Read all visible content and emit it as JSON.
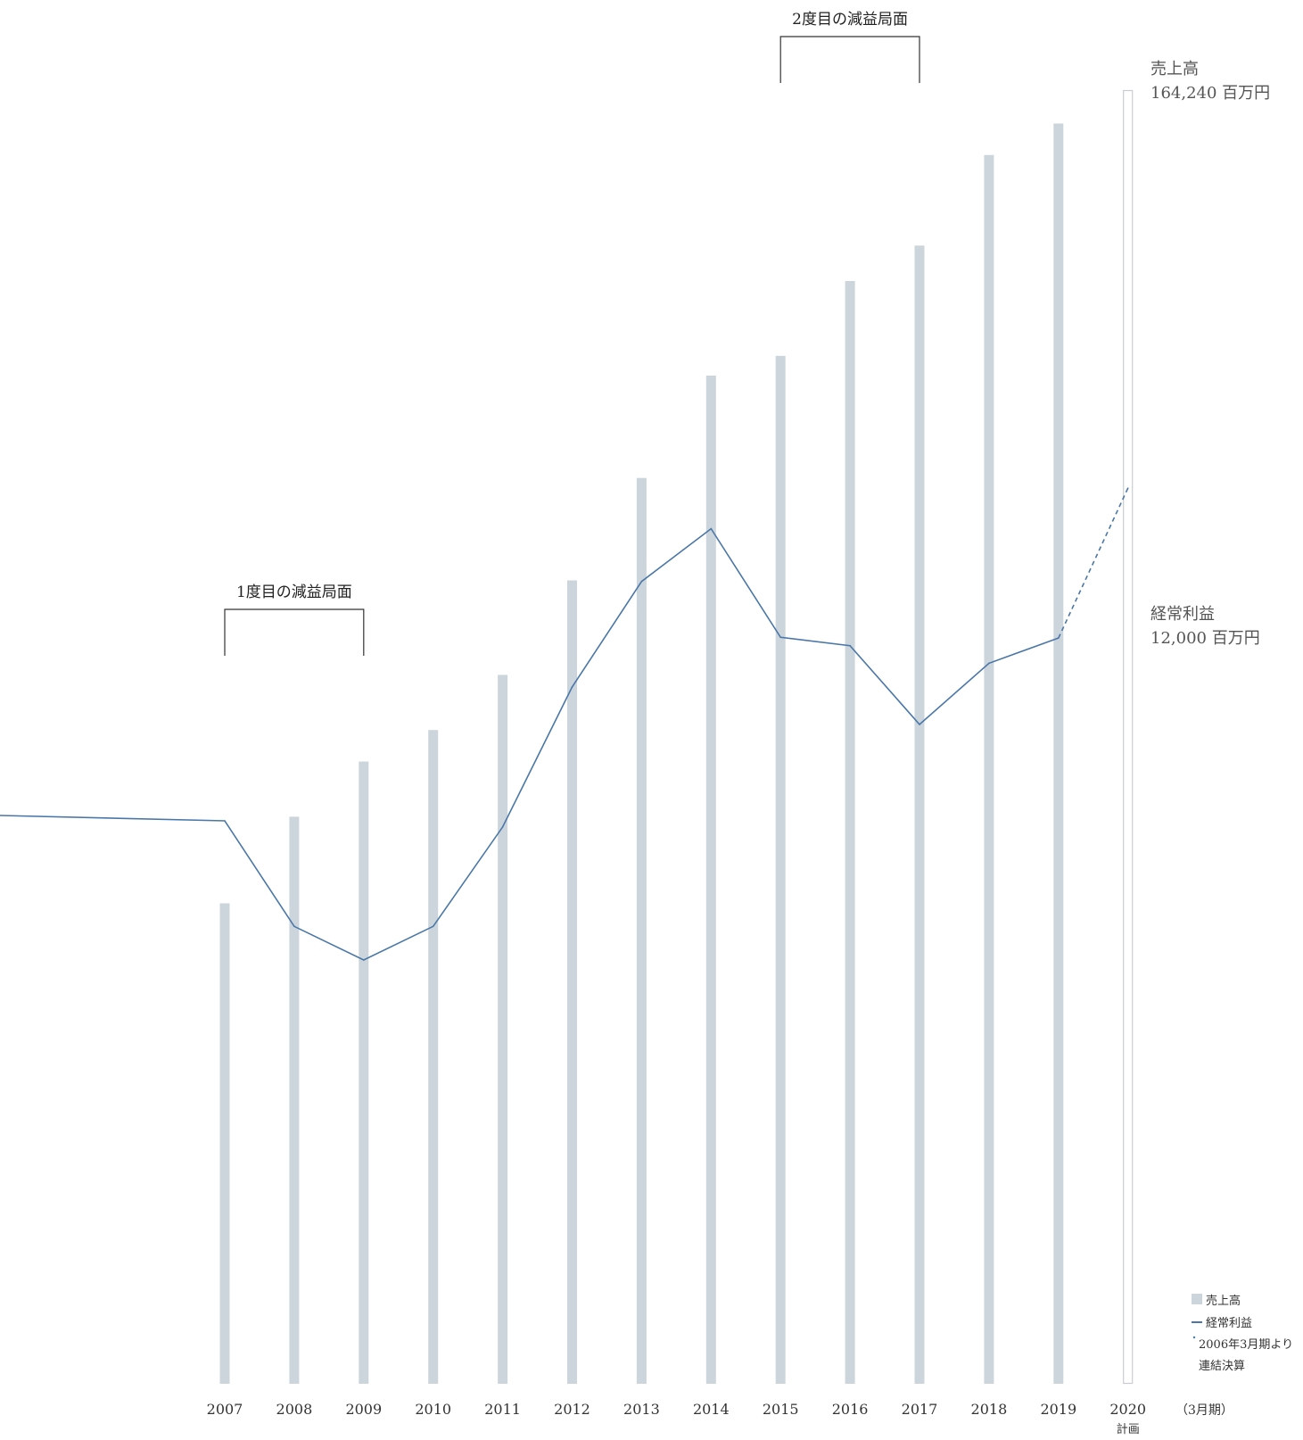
{
  "chart_data": {
    "type": "bar",
    "categories": [
      "2007",
      "2008",
      "2009",
      "2010",
      "2011",
      "2012",
      "2013",
      "2014",
      "2015",
      "2016",
      "2017",
      "2018",
      "2019",
      "2020"
    ],
    "category_sublabels": {
      "2020": "計画"
    },
    "x_unit_label": "（3月期）",
    "series": [
      {
        "name": "売上高",
        "type": "bar",
        "values": [
          61000,
          72000,
          79000,
          83000,
          90000,
          102000,
          115000,
          128000,
          130500,
          140000,
          144500,
          156000,
          160000,
          164240
        ],
        "planned_index": 13,
        "color": "#cdd5dc",
        "outline_color": "#c9cdd1"
      },
      {
        "name": "経常利益",
        "type": "line",
        "pre_values": [
          7720
        ],
        "values": [
          7650,
          6270,
          5830,
          6270,
          7570,
          9400,
          10780,
          11470,
          10050,
          9940,
          8910,
          9710,
          10040,
          12000
        ],
        "planned_index": 13,
        "color": "#4a77a8"
      }
    ],
    "annotations": [
      {
        "text": "1度目の減益局面",
        "from": "2007",
        "to": "2009"
      },
      {
        "text": "2度目の減益局面",
        "from": "2015",
        "to": "2017"
      }
    ],
    "end_labels": {
      "sales": {
        "name": "売上高",
        "value": "164,240 百万円"
      },
      "profit": {
        "name": "経常利益",
        "value": "12,000 百万円"
      }
    },
    "legend": {
      "position": "bottom-right",
      "items": [
        {
          "symbol": "square",
          "label": "売上高"
        },
        {
          "symbol": "line",
          "label": "経常利益"
        },
        {
          "symbol": "dot",
          "label": "2006年3月期より"
        },
        {
          "symbol": "none",
          "label": "連結決算"
        }
      ]
    },
    "grid": false
  }
}
